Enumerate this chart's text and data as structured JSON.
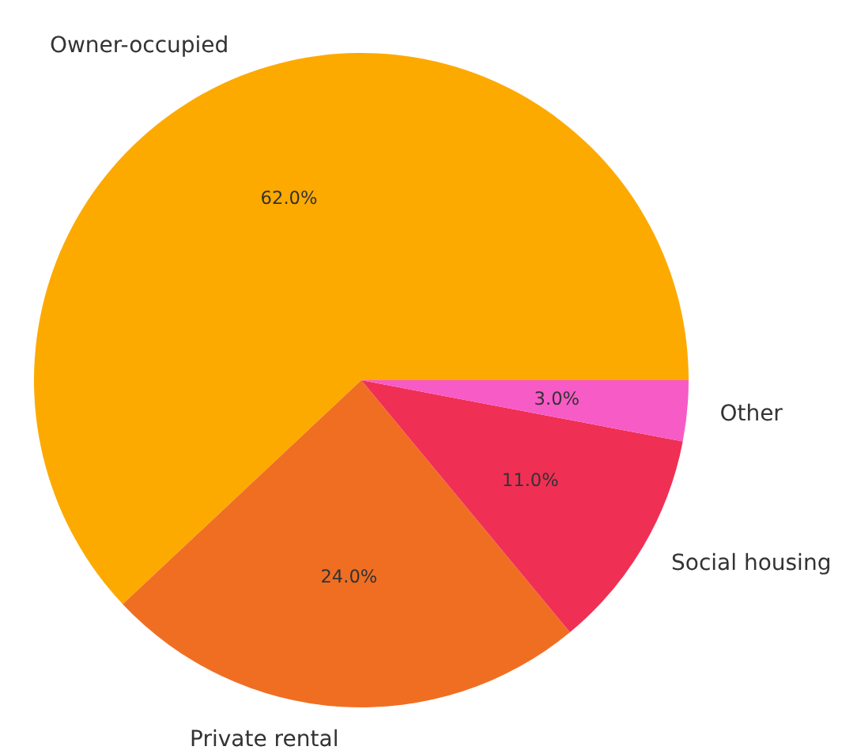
{
  "chart_data": {
    "type": "pie",
    "categories": [
      "Owner-occupied",
      "Private rental",
      "Social housing",
      "Other"
    ],
    "values": [
      62,
      24,
      11,
      3
    ],
    "colors": [
      "#fdaa00",
      "#f06e22",
      "#f02f55",
      "#f75bc6"
    ],
    "value_labels": [
      "62.0%",
      "24.0%",
      "11.0%",
      "3.0%"
    ]
  }
}
